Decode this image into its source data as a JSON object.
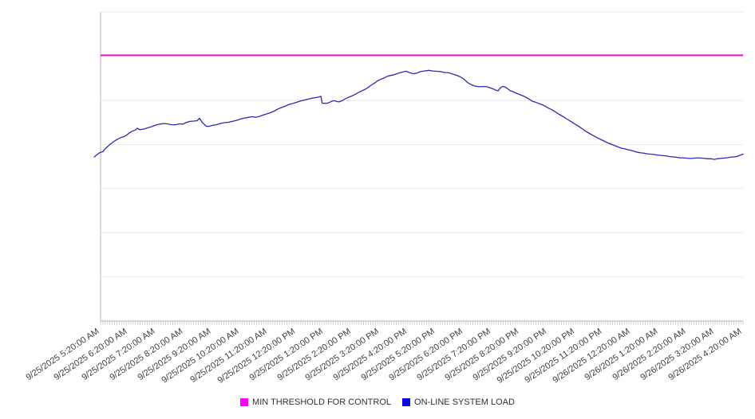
{
  "chart": {
    "legend": [
      {
        "label": "MIN THRESHOLD FOR CONTROL",
        "color": "#ff00ff"
      },
      {
        "label": "ON-LINE SYSTEM LOAD",
        "color": "#0a0ae0"
      }
    ]
  },
  "chart_data": {
    "type": "line",
    "title": "",
    "xlabel": "",
    "ylabel": "",
    "grid": "horizontal gridlines on, 8 lines including top and bottom borders",
    "legend_position": "bottom center",
    "x_axis": {
      "tick_labels": [
        "9/25/2025 5:20:00 AM",
        "9/25/2025 6:20:00 AM",
        "9/25/2025 7:20:00 AM",
        "9/25/2025 8:20:00 AM",
        "9/25/2025 9:20:00 AM",
        "9/25/2025 10:20:00 AM",
        "9/25/2025 11:20:00 AM",
        "9/25/2025 12:20:00 PM",
        "9/25/2025 1:20:00 PM",
        "9/25/2025 2:20:00 PM",
        "9/25/2025 3:20:00 PM",
        "9/25/2025 4:20:00 PM",
        "9/25/2025 5:20:00 PM",
        "9/25/2025 6:20:00 PM",
        "9/25/2025 7:20:00 PM",
        "9/25/2025 8:20:00 PM",
        "9/25/2025 9:20:00 PM",
        "9/25/2025 10:20:00 PM",
        "9/25/2025 11:20:00 PM",
        "9/26/2025 12:20:00 AM",
        "9/26/2025 1:20:00 AM",
        "9/26/2025 2:20:00 AM",
        "9/26/2025 3:20:00 AM",
        "9/26/2025 4:20:00 AM"
      ],
      "label_rotation_deg": -34,
      "minor_tick_count": 276,
      "minor_ticks_note": "dense 5-minute tick marks along the baseline"
    },
    "y_axis": {
      "labels_visible": false,
      "note": "no numeric y-axis labels are shown; series values below are fractions of plot height (0 = bottom axis, 1 = top border)"
    },
    "series": [
      {
        "name": "MIN THRESHOLD FOR CONTROL",
        "type": "horizontal-threshold-line",
        "color": "#e60fe6",
        "value_fraction": 0.86
      },
      {
        "name": "ON-LINE SYSTEM LOAD",
        "type": "line",
        "color": "#2b2bb2",
        "points_fraction": [
          [
            -0.01,
            0.531
          ],
          [
            -0.005,
            0.539
          ],
          [
            -0.001,
            0.545
          ],
          [
            0.004,
            0.548
          ],
          [
            0.007,
            0.557
          ],
          [
            0.014,
            0.57
          ],
          [
            0.02,
            0.58
          ],
          [
            0.026,
            0.588
          ],
          [
            0.031,
            0.593
          ],
          [
            0.037,
            0.597
          ],
          [
            0.042,
            0.604
          ],
          [
            0.048,
            0.613
          ],
          [
            0.055,
            0.619
          ],
          [
            0.057,
            0.624
          ],
          [
            0.061,
            0.619
          ],
          [
            0.067,
            0.621
          ],
          [
            0.073,
            0.625
          ],
          [
            0.08,
            0.629
          ],
          [
            0.086,
            0.634
          ],
          [
            0.092,
            0.637
          ],
          [
            0.098,
            0.639
          ],
          [
            0.104,
            0.638
          ],
          [
            0.111,
            0.635
          ],
          [
            0.117,
            0.635
          ],
          [
            0.123,
            0.638
          ],
          [
            0.128,
            0.637
          ],
          [
            0.133,
            0.642
          ],
          [
            0.139,
            0.646
          ],
          [
            0.145,
            0.647
          ],
          [
            0.15,
            0.648
          ],
          [
            0.154,
            0.656
          ],
          [
            0.158,
            0.643
          ],
          [
            0.161,
            0.637
          ],
          [
            0.165,
            0.63
          ],
          [
            0.169,
            0.63
          ],
          [
            0.174,
            0.633
          ],
          [
            0.18,
            0.635
          ],
          [
            0.186,
            0.639
          ],
          [
            0.193,
            0.642
          ],
          [
            0.199,
            0.643
          ],
          [
            0.205,
            0.646
          ],
          [
            0.211,
            0.649
          ],
          [
            0.217,
            0.653
          ],
          [
            0.224,
            0.657
          ],
          [
            0.23,
            0.659
          ],
          [
            0.236,
            0.661
          ],
          [
            0.241,
            0.659
          ],
          [
            0.246,
            0.661
          ],
          [
            0.251,
            0.665
          ],
          [
            0.257,
            0.669
          ],
          [
            0.263,
            0.673
          ],
          [
            0.27,
            0.679
          ],
          [
            0.276,
            0.686
          ],
          [
            0.282,
            0.691
          ],
          [
            0.288,
            0.696
          ],
          [
            0.294,
            0.701
          ],
          [
            0.301,
            0.705
          ],
          [
            0.307,
            0.709
          ],
          [
            0.313,
            0.713
          ],
          [
            0.319,
            0.716
          ],
          [
            0.325,
            0.719
          ],
          [
            0.332,
            0.722
          ],
          [
            0.338,
            0.724
          ],
          [
            0.343,
            0.727
          ],
          [
            0.345,
            0.705
          ],
          [
            0.35,
            0.704
          ],
          [
            0.355,
            0.706
          ],
          [
            0.36,
            0.711
          ],
          [
            0.364,
            0.713
          ],
          [
            0.368,
            0.71
          ],
          [
            0.371,
            0.709
          ],
          [
            0.376,
            0.713
          ],
          [
            0.381,
            0.719
          ],
          [
            0.386,
            0.724
          ],
          [
            0.391,
            0.728
          ],
          [
            0.396,
            0.733
          ],
          [
            0.401,
            0.739
          ],
          [
            0.406,
            0.744
          ],
          [
            0.411,
            0.749
          ],
          [
            0.416,
            0.755
          ],
          [
            0.421,
            0.763
          ],
          [
            0.426,
            0.769
          ],
          [
            0.431,
            0.777
          ],
          [
            0.436,
            0.782
          ],
          [
            0.442,
            0.787
          ],
          [
            0.448,
            0.793
          ],
          [
            0.455,
            0.796
          ],
          [
            0.461,
            0.8
          ],
          [
            0.467,
            0.804
          ],
          [
            0.473,
            0.807
          ],
          [
            0.476,
            0.808
          ],
          [
            0.48,
            0.804
          ],
          [
            0.483,
            0.802
          ],
          [
            0.487,
            0.8
          ],
          [
            0.492,
            0.802
          ],
          [
            0.498,
            0.807
          ],
          [
            0.504,
            0.809
          ],
          [
            0.511,
            0.811
          ],
          [
            0.517,
            0.809
          ],
          [
            0.523,
            0.808
          ],
          [
            0.529,
            0.807
          ],
          [
            0.535,
            0.804
          ],
          [
            0.542,
            0.803
          ],
          [
            0.548,
            0.799
          ],
          [
            0.554,
            0.795
          ],
          [
            0.56,
            0.79
          ],
          [
            0.564,
            0.785
          ],
          [
            0.568,
            0.778
          ],
          [
            0.571,
            0.772
          ],
          [
            0.575,
            0.767
          ],
          [
            0.579,
            0.763
          ],
          [
            0.583,
            0.76
          ],
          [
            0.586,
            0.759
          ],
          [
            0.591,
            0.758
          ],
          [
            0.596,
            0.759
          ],
          [
            0.601,
            0.758
          ],
          [
            0.606,
            0.755
          ],
          [
            0.611,
            0.751
          ],
          [
            0.615,
            0.747
          ],
          [
            0.619,
            0.745
          ],
          [
            0.622,
            0.754
          ],
          [
            0.626,
            0.759
          ],
          [
            0.63,
            0.757
          ],
          [
            0.634,
            0.751
          ],
          [
            0.637,
            0.746
          ],
          [
            0.642,
            0.742
          ],
          [
            0.647,
            0.737
          ],
          [
            0.652,
            0.733
          ],
          [
            0.657,
            0.729
          ],
          [
            0.662,
            0.724
          ],
          [
            0.667,
            0.718
          ],
          [
            0.672,
            0.711
          ],
          [
            0.677,
            0.708
          ],
          [
            0.682,
            0.704
          ],
          [
            0.687,
            0.7
          ],
          [
            0.692,
            0.695
          ],
          [
            0.697,
            0.689
          ],
          [
            0.702,
            0.684
          ],
          [
            0.707,
            0.678
          ],
          [
            0.712,
            0.671
          ],
          [
            0.717,
            0.665
          ],
          [
            0.722,
            0.659
          ],
          [
            0.727,
            0.652
          ],
          [
            0.732,
            0.646
          ],
          [
            0.737,
            0.639
          ],
          [
            0.742,
            0.633
          ],
          [
            0.747,
            0.626
          ],
          [
            0.751,
            0.62
          ],
          [
            0.756,
            0.613
          ],
          [
            0.761,
            0.607
          ],
          [
            0.766,
            0.601
          ],
          [
            0.771,
            0.595
          ],
          [
            0.776,
            0.59
          ],
          [
            0.781,
            0.585
          ],
          [
            0.786,
            0.58
          ],
          [
            0.791,
            0.575
          ],
          [
            0.796,
            0.571
          ],
          [
            0.801,
            0.567
          ],
          [
            0.806,
            0.563
          ],
          [
            0.811,
            0.559
          ],
          [
            0.816,
            0.557
          ],
          [
            0.821,
            0.554
          ],
          [
            0.826,
            0.552
          ],
          [
            0.831,
            0.549
          ],
          [
            0.836,
            0.546
          ],
          [
            0.841,
            0.544
          ],
          [
            0.846,
            0.543
          ],
          [
            0.851,
            0.541
          ],
          [
            0.856,
            0.54
          ],
          [
            0.861,
            0.539
          ],
          [
            0.866,
            0.537
          ],
          [
            0.871,
            0.536
          ],
          [
            0.876,
            0.535
          ],
          [
            0.881,
            0.534
          ],
          [
            0.886,
            0.532
          ],
          [
            0.891,
            0.531
          ],
          [
            0.896,
            0.53
          ],
          [
            0.901,
            0.528
          ],
          [
            0.906,
            0.528
          ],
          [
            0.911,
            0.527
          ],
          [
            0.916,
            0.526
          ],
          [
            0.92,
            0.526
          ],
          [
            0.925,
            0.527
          ],
          [
            0.93,
            0.528
          ],
          [
            0.935,
            0.527
          ],
          [
            0.94,
            0.526
          ],
          [
            0.945,
            0.525
          ],
          [
            0.95,
            0.525
          ],
          [
            0.955,
            0.523
          ],
          [
            0.96,
            0.525
          ],
          [
            0.965,
            0.526
          ],
          [
            0.97,
            0.527
          ],
          [
            0.975,
            0.528
          ],
          [
            0.98,
            0.53
          ],
          [
            0.985,
            0.531
          ],
          [
            0.99,
            0.532
          ],
          [
            0.995,
            0.536
          ],
          [
            1.0,
            0.54
          ]
        ]
      }
    ]
  }
}
